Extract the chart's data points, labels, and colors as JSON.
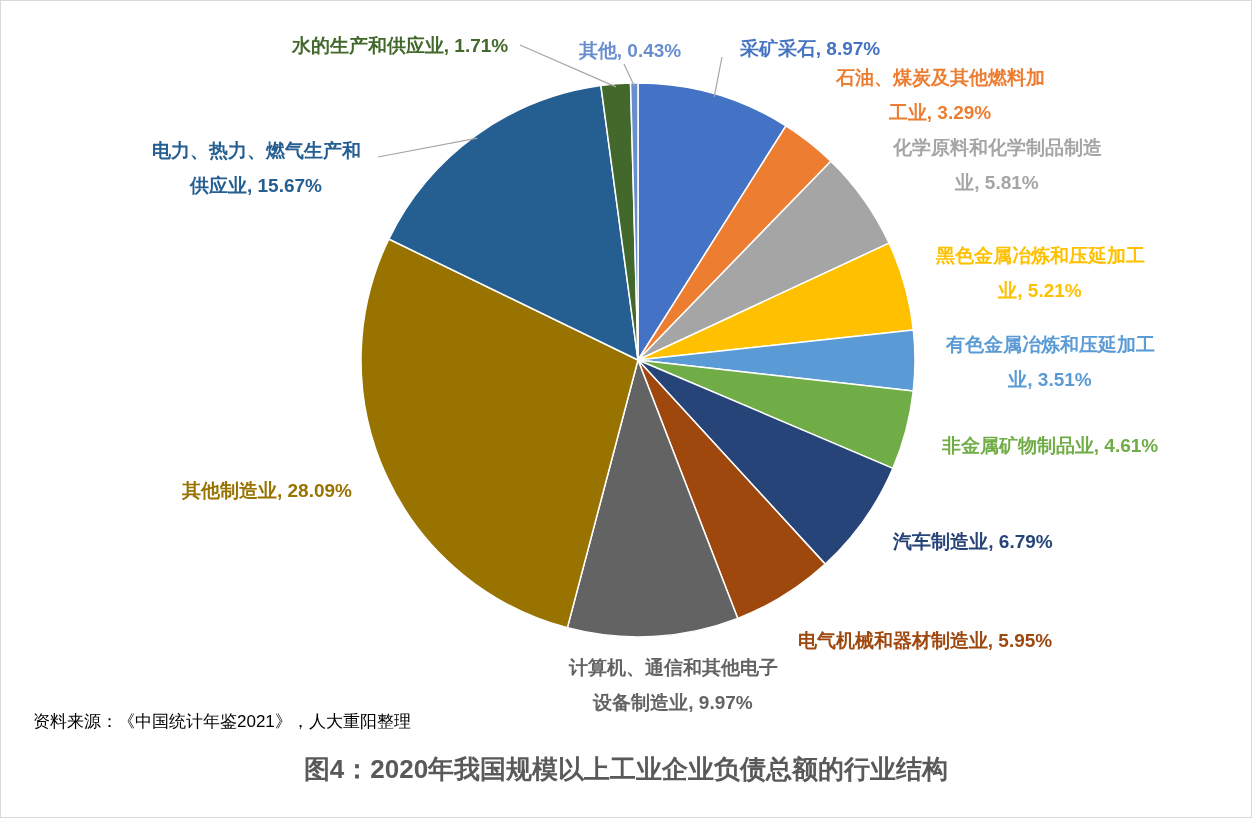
{
  "chart_data": {
    "type": "pie",
    "title": "图4：2020年我国规模以上工业企业负债总额的行业结构",
    "annotations": [
      "资料来源：《中国统计年鉴2021》，人大重阳整理"
    ],
    "categories": [
      "采矿采石",
      "石油、煤炭及其他燃料加工业",
      "化学原料和化学制品制造业",
      "黑色金属冶炼和压延加工业",
      "有色金属冶炼和压延加工业",
      "非金属矿物制品业",
      "汽车制造业",
      "电气机械和器材制造业",
      "计算机、通信和其他电子设备制造业",
      "其他制造业",
      "电力、热力、燃气生产和供应业",
      "水的生产和供应业",
      "其他"
    ],
    "values": [
      8.97,
      3.29,
      5.81,
      5.21,
      3.51,
      4.61,
      6.79,
      5.95,
      9.97,
      28.09,
      15.67,
      1.71,
      0.43
    ],
    "value_labels": [
      "8.97%",
      "3.29%",
      "5.81%",
      "5.21%",
      "3.51%",
      "4.61%",
      "6.79%",
      "5.95%",
      "9.97%",
      "28.09%",
      "15.67%",
      "1.71%",
      "0.43%"
    ],
    "colors": [
      "#4472c4",
      "#ed7d31",
      "#a5a5a5",
      "#ffc000",
      "#5b9bd5",
      "#70ad47",
      "#264478",
      "#9e480e",
      "#636363",
      "#997300",
      "#255e91",
      "#43682b",
      "#698ed0"
    ]
  }
}
